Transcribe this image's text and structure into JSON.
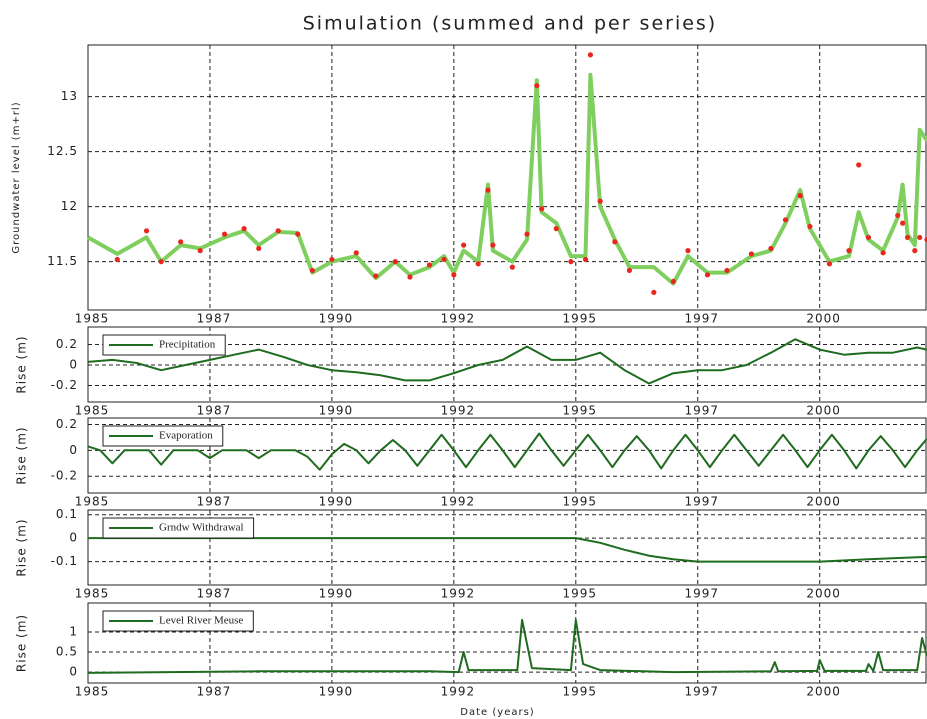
{
  "chart_data": [
    {
      "type": "line",
      "title": "Simulation (summed and per series)",
      "ylabel": "Groundwater level (m+rl)",
      "grid": true,
      "xlim": [
        1985,
        2002.2
      ],
      "xticks": [
        1985,
        {
          "value": 1987.5,
          "label": "1987"
        },
        1990,
        {
          "value": 1992.5,
          "label": "1992"
        },
        1995,
        {
          "value": 1997.5,
          "label": "1997"
        },
        2000
      ],
      "ylim": [
        11.06,
        13.47
      ],
      "yticks": [
        11.5,
        12,
        12.5,
        13
      ],
      "x": [
        1985,
        1985.6,
        1986.2,
        1986.5,
        1986.9,
        1987.3,
        1987.8,
        1988.2,
        1988.5,
        1988.9,
        1989.3,
        1989.6,
        1990,
        1990.5,
        1990.9,
        1991.3,
        1991.6,
        1992,
        1992.3,
        1992.5,
        1992.7,
        1993,
        1993.2,
        1993.3,
        1993.7,
        1994,
        1994.2,
        1994.3,
        1994.6,
        1994.9,
        1995.2,
        1995.3,
        1995.5,
        1995.8,
        1996.1,
        1996.6,
        1997,
        1997.3,
        1997.7,
        1998.1,
        1998.6,
        1999,
        1999.3,
        1999.6,
        1999.8,
        2000.2,
        2000.6,
        2000.8,
        2001,
        2001.3,
        2001.6,
        2001.7,
        2001.8,
        2001.95,
        2002.05,
        2002.2
      ],
      "series": [
        {
          "color": "#7fcf5e",
          "style": "line",
          "values": [
            11.72,
            11.57,
            11.72,
            11.5,
            11.65,
            11.62,
            11.72,
            11.78,
            11.65,
            11.77,
            11.76,
            11.4,
            11.5,
            11.55,
            11.35,
            11.5,
            11.38,
            11.45,
            11.55,
            11.4,
            11.6,
            11.5,
            12.2,
            11.6,
            11.5,
            11.7,
            13.15,
            11.95,
            11.85,
            11.55,
            11.55,
            13.2,
            12.0,
            11.7,
            11.45,
            11.45,
            11.3,
            11.55,
            11.4,
            11.4,
            11.55,
            11.6,
            11.85,
            12.15,
            11.8,
            11.5,
            11.55,
            11.95,
            11.7,
            11.6,
            11.9,
            12.2,
            11.75,
            11.65,
            12.7,
            12.6
          ]
        },
        {
          "color": "#e8281e",
          "style": "markers",
          "values": [
            null,
            11.52,
            11.78,
            11.5,
            11.68,
            11.6,
            11.75,
            11.8,
            11.62,
            11.78,
            11.75,
            11.42,
            11.52,
            11.58,
            11.37,
            11.5,
            11.36,
            11.47,
            11.52,
            11.38,
            11.65,
            11.48,
            12.15,
            11.65,
            11.45,
            11.75,
            13.1,
            11.98,
            11.8,
            11.5,
            11.52,
            13.38,
            12.05,
            11.68,
            11.42,
            11.22,
            11.32,
            11.6,
            11.38,
            11.42,
            11.57,
            11.62,
            11.88,
            12.1,
            11.82,
            11.48,
            11.6,
            12.38,
            11.72,
            11.58,
            11.92,
            11.85,
            11.72,
            11.6,
            11.72,
            11.7
          ]
        }
      ]
    },
    {
      "type": "line",
      "ylabel": "Rise (m)",
      "grid": true,
      "legend": "upper left",
      "xlim": [
        1985,
        2002.2
      ],
      "xticks": [
        1985,
        {
          "value": 1987.5,
          "label": "1987"
        },
        1990,
        {
          "value": 1992.5,
          "label": "1992"
        },
        1995,
        {
          "value": 1997.5,
          "label": "1997"
        },
        2000
      ],
      "ylim": [
        -0.36,
        0.37
      ],
      "yticks": [
        -0.2,
        0,
        0.2
      ],
      "x": [
        1985,
        1985.5,
        1986,
        1986.5,
        1987,
        1987.5,
        1988,
        1988.5,
        1989,
        1989.5,
        1990,
        1990.5,
        1991,
        1991.5,
        1992,
        1992.5,
        1993,
        1993.5,
        1994,
        1994.5,
        1995,
        1995.5,
        1996,
        1996.5,
        1997,
        1997.5,
        1998,
        1998.5,
        1999,
        1999.5,
        2000,
        2000.5,
        2001,
        2001.5,
        2002,
        2002.2
      ],
      "series": [
        {
          "name": "Precipitation",
          "color": "#1f6b1f",
          "style": "line",
          "values": [
            0.03,
            0.05,
            0.02,
            -0.05,
            0,
            0.05,
            0.1,
            0.15,
            0.08,
            0,
            -0.05,
            -0.07,
            -0.1,
            -0.15,
            -0.15,
            -0.08,
            0,
            0.05,
            0.18,
            0.05,
            0.05,
            0.12,
            -0.05,
            -0.18,
            -0.08,
            -0.05,
            -0.05,
            0,
            0.12,
            0.25,
            0.15,
            0.1,
            0.12,
            0.12,
            0.17,
            0.15
          ]
        }
      ]
    },
    {
      "type": "line",
      "ylabel": "Rise (m)",
      "grid": true,
      "legend": "upper left",
      "xlim": [
        1985,
        2002.2
      ],
      "xticks": [
        1985,
        {
          "value": 1987.5,
          "label": "1987"
        },
        1990,
        {
          "value": 1992.5,
          "label": "1992"
        },
        1995,
        {
          "value": 1997.5,
          "label": "1997"
        },
        2000
      ],
      "ylim": [
        -0.33,
        0.25
      ],
      "yticks": [
        -0.2,
        0,
        0.2
      ],
      "x": [
        1985,
        1985.25,
        1985.5,
        1985.75,
        1986,
        1986.25,
        1986.5,
        1986.75,
        1987,
        1987.25,
        1987.5,
        1987.75,
        1988,
        1988.25,
        1988.5,
        1988.75,
        1989,
        1989.25,
        1989.5,
        1989.75,
        1990,
        1990.25,
        1990.5,
        1990.75,
        1991,
        1991.25,
        1991.5,
        1991.75,
        1992,
        1992.25,
        1992.5,
        1992.75,
        1993,
        1993.25,
        1993.5,
        1993.75,
        1994,
        1994.25,
        1994.5,
        1994.75,
        1995,
        1995.25,
        1995.5,
        1995.75,
        1996,
        1996.25,
        1996.5,
        1996.75,
        1997,
        1997.25,
        1997.5,
        1997.75,
        1998,
        1998.25,
        1998.5,
        1998.75,
        1999,
        1999.25,
        1999.5,
        1999.75,
        2000,
        2000.25,
        2000.5,
        2000.75,
        2001,
        2001.25,
        2001.5,
        2001.75,
        2002,
        2002.2
      ],
      "series": [
        {
          "name": "Evaporation",
          "color": "#1f6b1f",
          "style": "line",
          "values": [
            0.03,
            0,
            -0.1,
            0,
            0,
            0,
            -0.11,
            0,
            0,
            0,
            -0.06,
            0,
            0,
            0,
            -0.06,
            0,
            0,
            0,
            -0.05,
            -0.15,
            -0.03,
            0.05,
            0,
            -0.1,
            0,
            0.08,
            0,
            -0.12,
            0,
            0.12,
            0,
            -0.13,
            0,
            0.12,
            0,
            -0.13,
            0,
            0.13,
            0,
            -0.12,
            0,
            0.12,
            0,
            -0.13,
            0,
            0.11,
            0,
            -0.14,
            0,
            0.12,
            0,
            -0.13,
            0,
            0.12,
            0,
            -0.12,
            0,
            0.12,
            0,
            -0.13,
            0,
            0.12,
            0,
            -0.14,
            0,
            0.11,
            0,
            -0.13,
            0,
            0.09
          ]
        }
      ]
    },
    {
      "type": "line",
      "ylabel": "Rise (m)",
      "grid": true,
      "legend": "upper left",
      "xlim": [
        1985,
        2002.2
      ],
      "xticks": [
        1985,
        {
          "value": 1987.5,
          "label": "1987"
        },
        1990,
        {
          "value": 1992.5,
          "label": "1992"
        },
        1995,
        {
          "value": 1997.5,
          "label": "1997"
        },
        2000
      ],
      "ylim": [
        -0.2,
        0.12
      ],
      "yticks": [
        -0.1,
        0,
        0.1
      ],
      "x": [
        1985,
        1995,
        1995.5,
        1996,
        1996.5,
        1997,
        1997.5,
        2000,
        2001,
        2002.2
      ],
      "series": [
        {
          "name": "Grndw Withdrawal",
          "color": "#1f6b1f",
          "style": "line",
          "values": [
            0,
            0,
            -0.02,
            -0.05,
            -0.075,
            -0.09,
            -0.1,
            -0.1,
            -0.09,
            -0.08
          ]
        }
      ]
    },
    {
      "type": "line",
      "ylabel": "Rise (m)",
      "xlabel": "Date (years)",
      "grid": true,
      "legend": "upper left",
      "xlim": [
        1985,
        2002.2
      ],
      "xticks": [
        1985,
        {
          "value": 1987.5,
          "label": "1987"
        },
        1990,
        {
          "value": 1992.5,
          "label": "1992"
        },
        1995,
        {
          "value": 1997.5,
          "label": "1997"
        },
        2000
      ],
      "ylim": [
        -0.27,
        1.72
      ],
      "yticks": [
        0,
        0.5,
        1
      ],
      "x": [
        1985,
        1988.5,
        1992,
        1992.6,
        1992.7,
        1992.8,
        1993.8,
        1993.9,
        1994.1,
        1994.9,
        1995,
        1995.15,
        1995.5,
        1997,
        1999,
        1999.08,
        1999.15,
        1999.95,
        2000,
        2000.1,
        2000.95,
        2001,
        2001.1,
        2001.2,
        2001.3,
        2002,
        2002.1,
        2002.2
      ],
      "series": [
        {
          "name": "Level River Meuse",
          "color": "#1f6b1f",
          "style": "line",
          "values": [
            -0.02,
            0.02,
            0.02,
            0,
            0.5,
            0.05,
            0.05,
            1.3,
            0.1,
            0.05,
            1.3,
            0.2,
            0.05,
            0,
            0.02,
            0.25,
            0.02,
            0.03,
            0.3,
            0.03,
            0.03,
            0.2,
            0.03,
            0.5,
            0.05,
            0.05,
            0.85,
            0.4
          ]
        }
      ]
    }
  ]
}
